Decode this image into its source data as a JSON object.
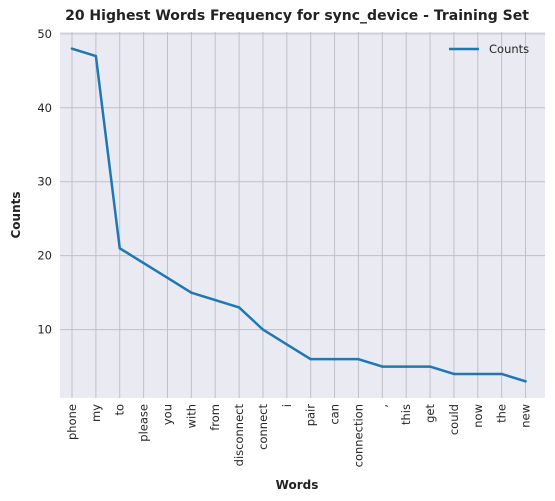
{
  "chart_data": {
    "type": "line",
    "title": "20 Highest Words Frequency for sync_device - Training Set",
    "xlabel": "Words",
    "ylabel": "Counts",
    "categories": [
      "phone",
      "my",
      "to",
      "please",
      "you",
      "with",
      "from",
      "disconnect",
      "connect",
      "i",
      "pair",
      "can",
      "connection",
      ",",
      "this",
      "get",
      "could",
      "now",
      "the",
      "new"
    ],
    "series": [
      {
        "name": "Counts",
        "values": [
          48,
          47,
          21,
          19,
          17,
          15,
          14,
          13,
          10,
          8,
          6,
          6,
          6,
          5,
          5,
          5,
          4,
          4,
          4,
          3
        ]
      }
    ],
    "ylim": [
      0.75,
      50.25
    ],
    "yticks": [
      10,
      20,
      30,
      40,
      50
    ],
    "grid": true,
    "legend": "top-right",
    "colors": {
      "line": "#1f77b4",
      "plot_bg": "#eaeaf2",
      "grid": "#c0c0c8"
    }
  }
}
